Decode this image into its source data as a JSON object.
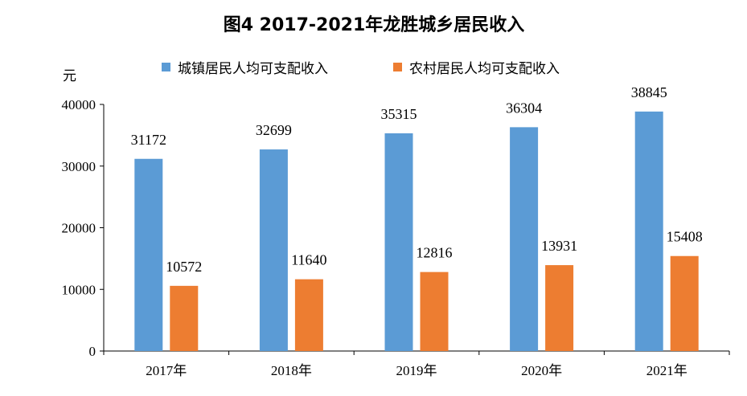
{
  "chart_data": {
    "type": "bar",
    "title": "图4   2017-2021年龙胜城乡居民收入",
    "ylabel": "元",
    "xlabel": "",
    "categories": [
      "2017年",
      "2018年",
      "2019年",
      "2020年",
      "2021年"
    ],
    "series": [
      {
        "name": "城镇居民人均可支配收入",
        "color": "#5B9BD5",
        "values": [
          31172,
          32699,
          35315,
          36304,
          38845
        ]
      },
      {
        "name": "农村居民人均可支配收入",
        "color": "#ED7D31",
        "values": [
          10572,
          11640,
          12816,
          13931,
          15408
        ]
      }
    ],
    "ylim": [
      0,
      40000
    ],
    "yticks": [
      0,
      10000,
      20000,
      30000,
      40000
    ],
    "ytick_labels": [
      "0",
      "10000",
      "20000",
      "30000",
      "40000"
    ],
    "grid": false,
    "legend_position": "top"
  }
}
